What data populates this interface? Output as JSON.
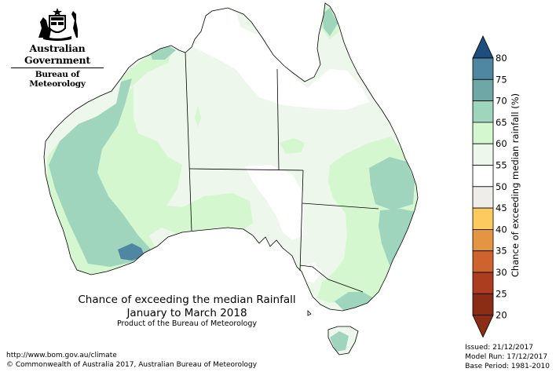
{
  "branding": {
    "government": "Australian Government",
    "agency": "Bureau of Meteorology",
    "logo_icon": "coat-of-arms-icon"
  },
  "map": {
    "title_line1": "Chance of exceeding the median Rainfall",
    "title_line2": "January to March 2018",
    "product": "Product of the Bureau of Meteorology"
  },
  "footer": {
    "url": "http://www.bom.gov.au/climate",
    "copyright": "© Commonwealth of Australia 2017, Australian Bureau of Meteorology"
  },
  "run_info": {
    "issued": "Issued: 21/12/2017",
    "model_run": "Model Run: 17/12/2017",
    "base_period": "Base Period: 1981-2010"
  },
  "legend": {
    "label": "Chance of exceeding median rainfall (%)",
    "ticks": [
      "80",
      "75",
      "70",
      "65",
      "60",
      "55",
      "50",
      "45",
      "40",
      "35",
      "30",
      "25",
      "20"
    ],
    "colors": [
      "#2e5f8a",
      "#4f86a1",
      "#6fa7a6",
      "#9fd4bd",
      "#d4f7cf",
      "#eef7ec",
      "#ffffff",
      "#efedea",
      "#fdca5f",
      "#e39541",
      "#cd642e",
      "#ac3d1f",
      "#8a2d14"
    ]
  },
  "palette": {
    "p55": "#eef7ec",
    "p60": "#d4f7cf",
    "p65": "#9fd4bd",
    "p70": "#6fa7a6",
    "p75": "#4f86a1",
    "p50": "#ffffff"
  }
}
